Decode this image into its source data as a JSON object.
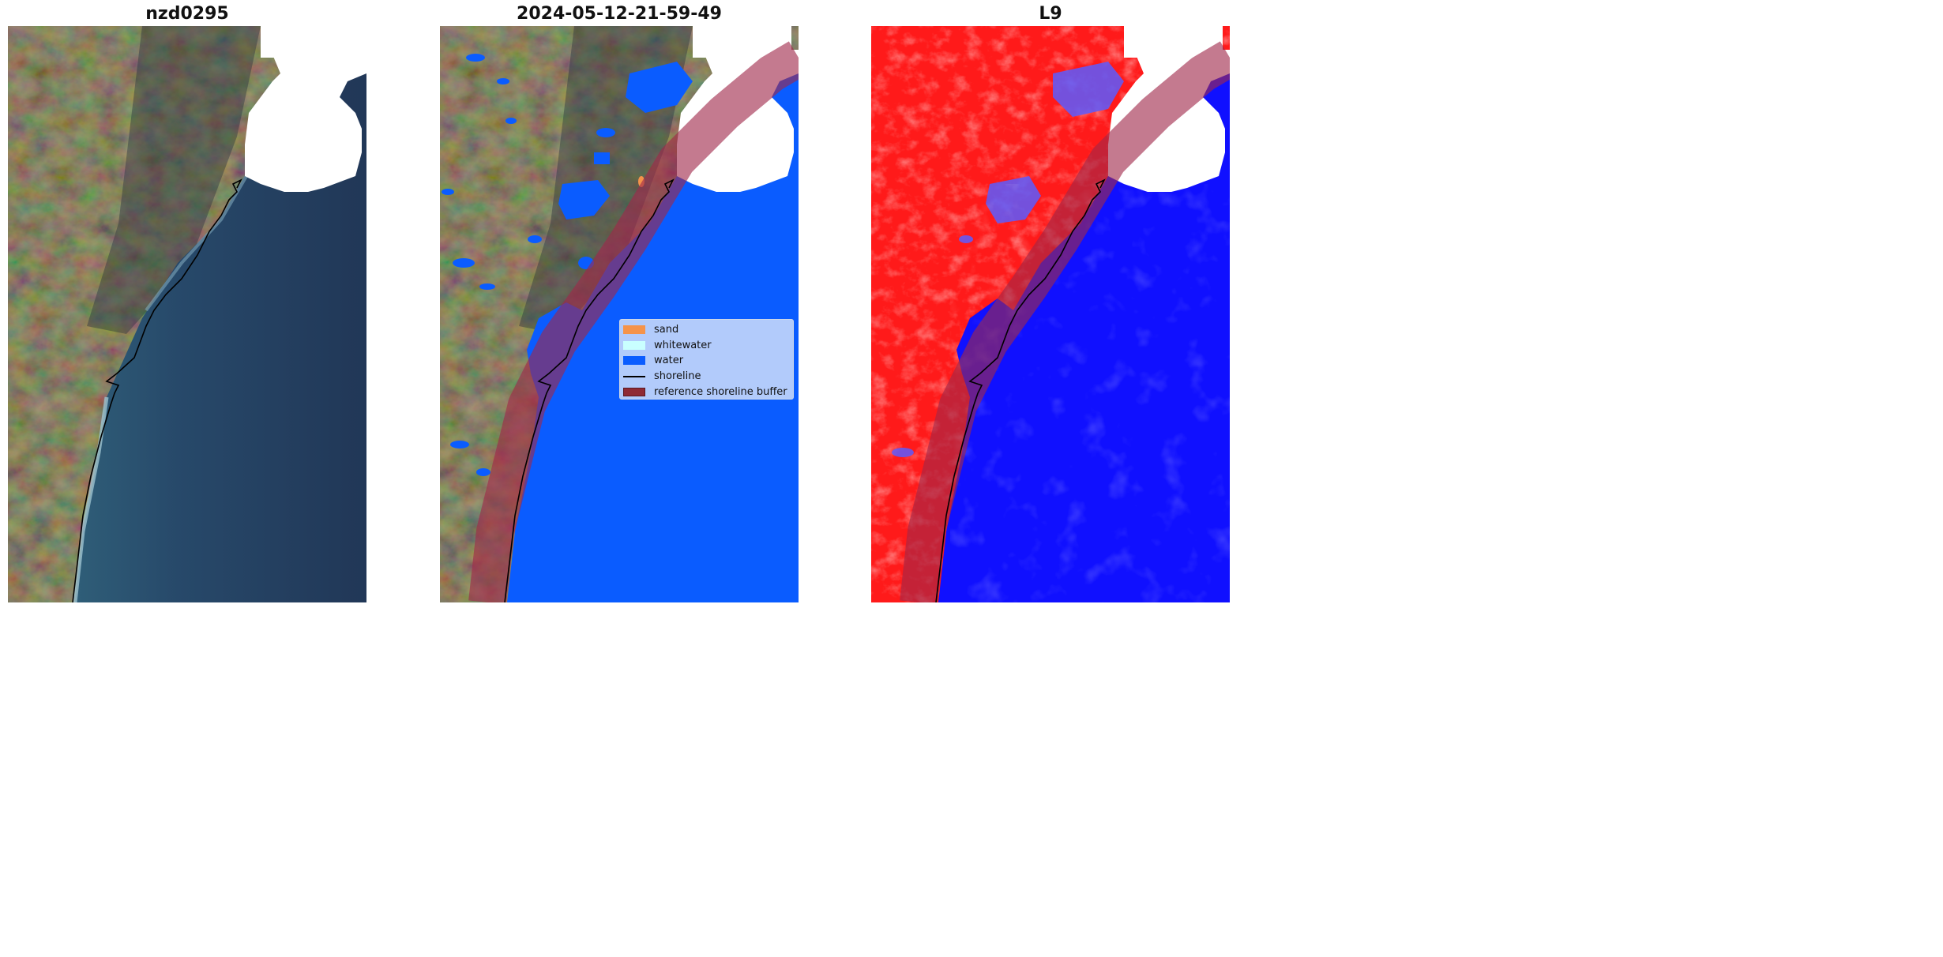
{
  "panels": [
    {
      "title": "nzd0295"
    },
    {
      "title": "2024-05-12-21-59-49"
    },
    {
      "title": "L9"
    }
  ],
  "legend": {
    "items": [
      {
        "label": "sand",
        "color": "#f5934a",
        "kind": "patch"
      },
      {
        "label": "whitewater",
        "color": "#c9ffff",
        "kind": "patch"
      },
      {
        "label": "water",
        "color": "#0a5cff",
        "kind": "patch"
      },
      {
        "label": "shoreline",
        "color": "#000000",
        "kind": "line"
      },
      {
        "label": "reference shoreline buffer",
        "color": "#8f2a35",
        "kind": "patch"
      }
    ]
  },
  "colors": {
    "ocean": "#223a5e",
    "land": "#5f5e3f",
    "water_class": "#0a5cff",
    "index_positive": "#ff1a1a",
    "index_negative": "#1010ff",
    "buffer": "#a0284a",
    "cloud_mask": "#ffffff"
  }
}
